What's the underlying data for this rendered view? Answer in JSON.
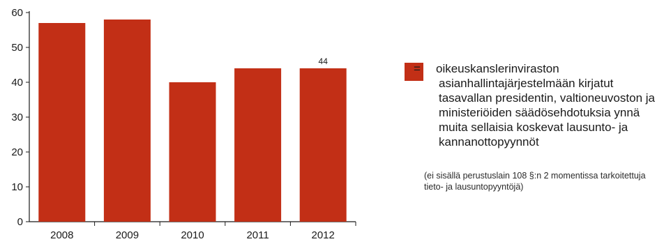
{
  "chart_data": {
    "type": "bar",
    "categories": [
      "2008",
      "2009",
      "2010",
      "2011",
      "2012"
    ],
    "values": [
      57,
      58,
      40,
      44,
      44
    ],
    "data_labels": [
      null,
      null,
      null,
      null,
      "44"
    ],
    "ylim": [
      0,
      60
    ],
    "yticks": [
      "0",
      "10",
      "20",
      "30",
      "40",
      "50",
      "60"
    ],
    "grid": false,
    "bar_color": "#c22f16",
    "legend_position": "right"
  },
  "legend": {
    "prefix": "=",
    "text": "oikeuskanslerinviraston asianhallintajärjestelmään kirjatut tasavallan presidentin, valtioneuvoston ja ministeriöiden säädösehdotuksia ynnä muita sellaisia koskevat lausunto- ja kannanottopyynnöt",
    "note": "(ei sisällä perustuslain 108 §:n 2 momentissa tarkoitettuja tieto- ja lausuntopyyntöjä)"
  }
}
